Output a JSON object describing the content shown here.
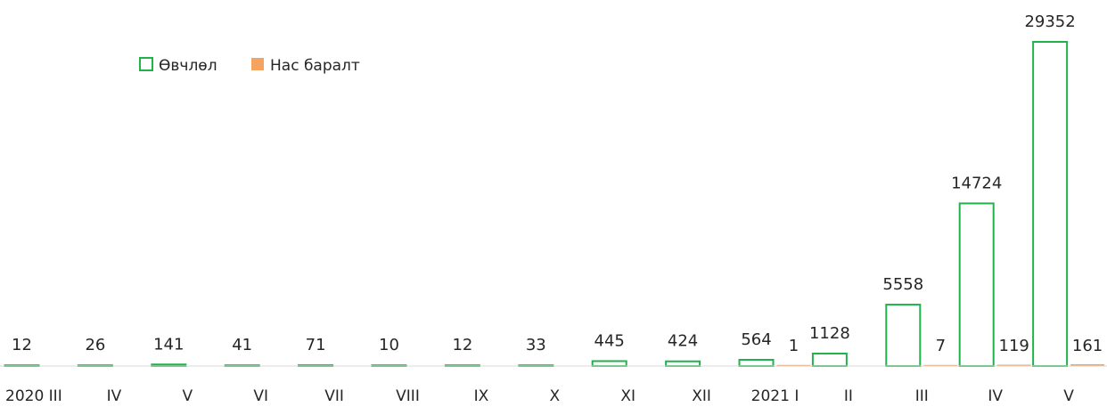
{
  "chart_data": {
    "type": "bar",
    "categories": [
      "2020 III",
      "IV",
      "V",
      "VI",
      "VII",
      "VIII",
      "IX",
      "X",
      "XI",
      "XII",
      "2021 I",
      "II",
      "III",
      "IV",
      "V"
    ],
    "series": [
      {
        "name": "Өвчлөл",
        "values": [
          12,
          26,
          141,
          41,
          71,
          10,
          12,
          33,
          445,
          424,
          564,
          1128,
          5558,
          14724,
          29352
        ],
        "labels": [
          "12",
          "26",
          "141",
          "41",
          "71",
          "10",
          "12",
          "33",
          "445",
          "424",
          "564",
          "1128",
          "5558",
          "14724",
          "29352"
        ],
        "color": "#22b24c"
      },
      {
        "name": "Нас баралт",
        "values": [
          0,
          0,
          0,
          0,
          0,
          0,
          0,
          0,
          0,
          0,
          1,
          0,
          7,
          119,
          161
        ],
        "labels": [
          "",
          "",
          "",
          "",
          "",
          "",
          "",
          "",
          "",
          "",
          "1",
          "",
          "7",
          "119",
          "161"
        ],
        "color": "#f4a460"
      }
    ],
    "title": "",
    "xlabel": "",
    "ylabel": "",
    "ylim": [
      0,
      29352
    ],
    "grid": false,
    "legend_position": "top-left"
  }
}
